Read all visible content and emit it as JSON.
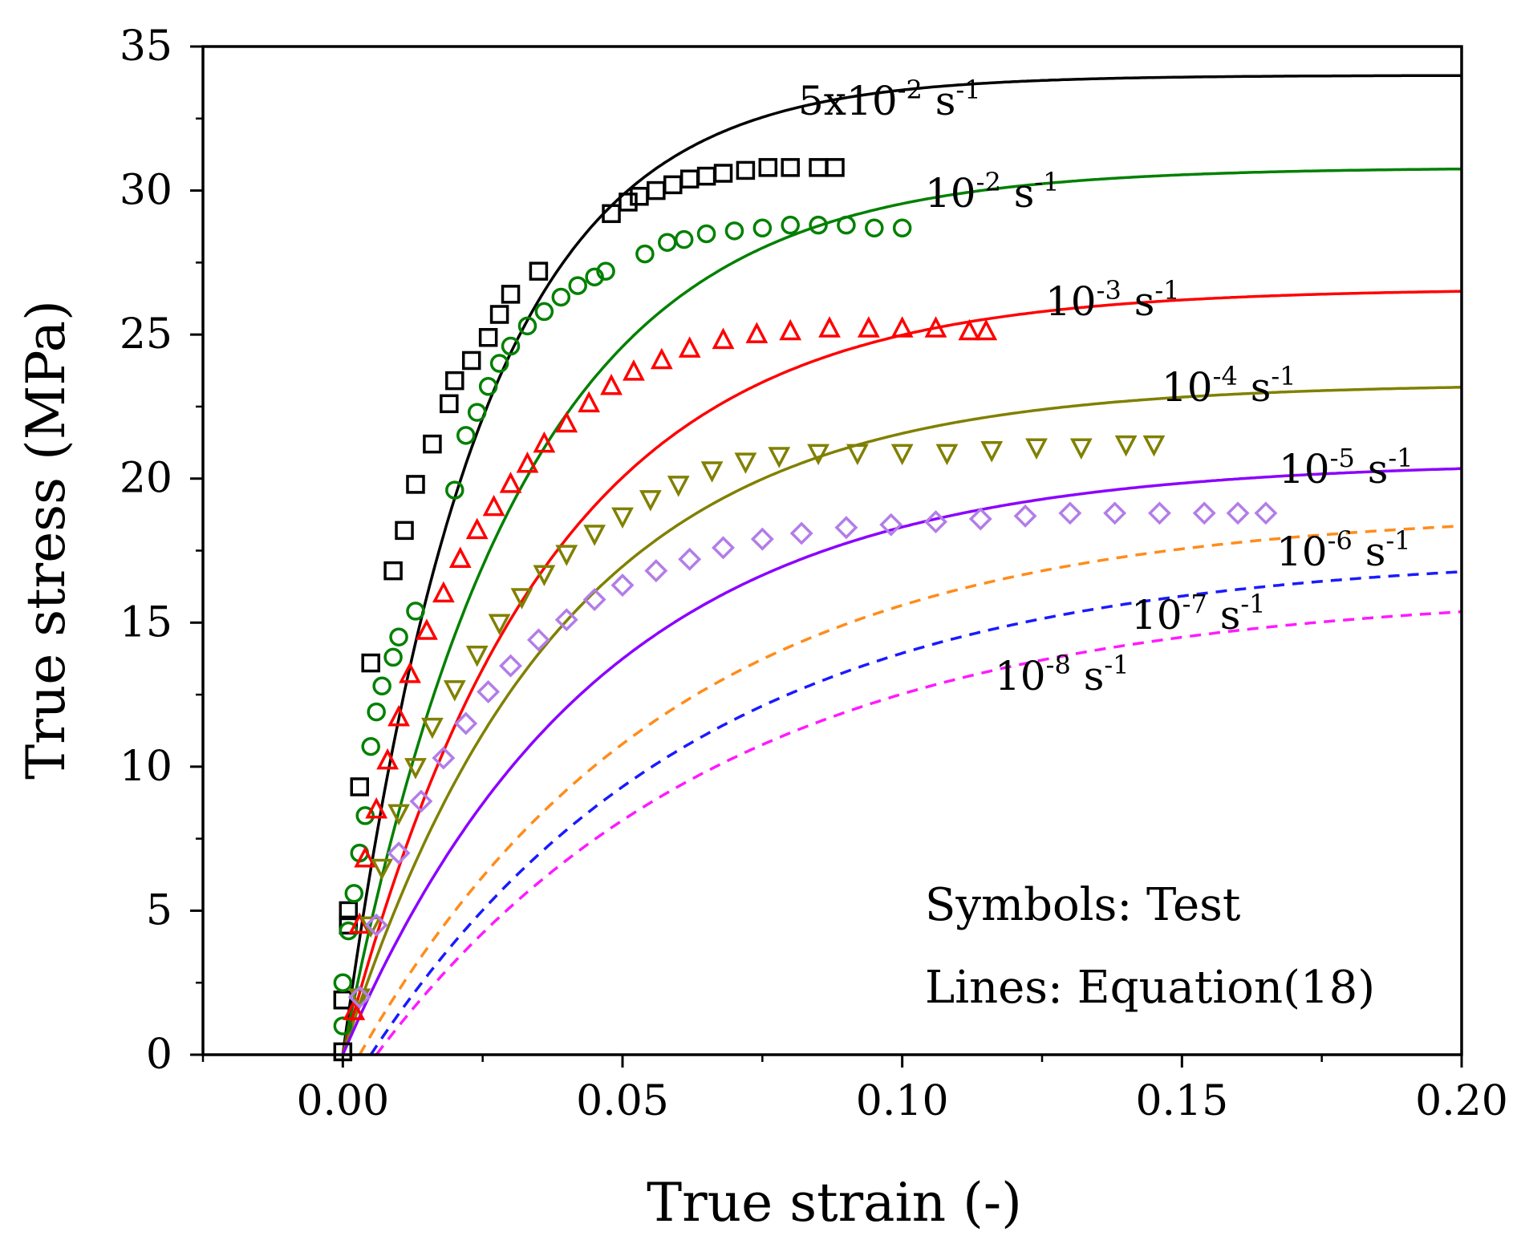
{
  "chart_data": {
    "type": "scatter",
    "title": "",
    "xlabel": "True strain (-)",
    "ylabel": "True stress (MPa)",
    "xlim": [
      -0.025,
      0.2
    ],
    "ylim": [
      0,
      35
    ],
    "x_ticks": [
      "0.00",
      "0.05",
      "0.10",
      "0.15",
      "0.20"
    ],
    "y_ticks": [
      "0",
      "5",
      "10",
      "15",
      "20",
      "25",
      "30",
      "35"
    ],
    "grid": false,
    "notes": {
      "symbols": "Symbols: Test",
      "lines": "Lines: Equation(18)"
    },
    "series": [
      {
        "name": "5x10^-2 s^-1",
        "label_base": "5x10",
        "label_exp": "-2",
        "label_unit": " s",
        "label_unit_exp": "-1",
        "color": "#000000",
        "marker": "square",
        "line_style": "solid",
        "model": {
          "sigma_max": 34.0,
          "k": 42.0,
          "x0": 0.0
        },
        "test": [
          [
            0.0,
            0.1
          ],
          [
            0.0,
            1.9
          ],
          [
            0.001,
            4.5
          ],
          [
            0.001,
            5.0
          ],
          [
            0.003,
            9.3
          ],
          [
            0.005,
            13.6
          ],
          [
            0.009,
            16.8
          ],
          [
            0.011,
            18.2
          ],
          [
            0.013,
            19.8
          ],
          [
            0.016,
            21.2
          ],
          [
            0.019,
            22.6
          ],
          [
            0.02,
            23.4
          ],
          [
            0.023,
            24.1
          ],
          [
            0.026,
            24.9
          ],
          [
            0.028,
            25.7
          ],
          [
            0.03,
            26.4
          ],
          [
            0.035,
            27.2
          ],
          [
            0.048,
            29.2
          ],
          [
            0.051,
            29.6
          ],
          [
            0.053,
            29.8
          ],
          [
            0.056,
            30.0
          ],
          [
            0.059,
            30.2
          ],
          [
            0.062,
            30.4
          ],
          [
            0.065,
            30.5
          ],
          [
            0.068,
            30.6
          ],
          [
            0.072,
            30.7
          ],
          [
            0.076,
            30.8
          ],
          [
            0.08,
            30.8
          ],
          [
            0.085,
            30.8
          ],
          [
            0.088,
            30.8
          ]
        ]
      },
      {
        "name": "10^-2 s^-1",
        "label_base": "10",
        "label_exp": "-2",
        "label_unit": " s",
        "label_unit_exp": "-1",
        "color": "#008000",
        "marker": "circle",
        "line_style": "solid",
        "model": {
          "sigma_max": 30.8,
          "k": 32.0,
          "x0": 0.0
        },
        "test": [
          [
            0.0,
            1.0
          ],
          [
            0.0,
            2.5
          ],
          [
            0.001,
            4.3
          ],
          [
            0.002,
            5.6
          ],
          [
            0.003,
            7.0
          ],
          [
            0.004,
            8.3
          ],
          [
            0.005,
            10.7
          ],
          [
            0.006,
            11.9
          ],
          [
            0.007,
            12.8
          ],
          [
            0.009,
            13.8
          ],
          [
            0.01,
            14.5
          ],
          [
            0.013,
            15.4
          ],
          [
            0.02,
            19.6
          ],
          [
            0.022,
            21.5
          ],
          [
            0.024,
            22.3
          ],
          [
            0.026,
            23.2
          ],
          [
            0.028,
            24.0
          ],
          [
            0.03,
            24.6
          ],
          [
            0.033,
            25.3
          ],
          [
            0.036,
            25.8
          ],
          [
            0.039,
            26.3
          ],
          [
            0.042,
            26.7
          ],
          [
            0.045,
            27.0
          ],
          [
            0.047,
            27.2
          ],
          [
            0.054,
            27.8
          ],
          [
            0.058,
            28.2
          ],
          [
            0.061,
            28.3
          ],
          [
            0.065,
            28.5
          ],
          [
            0.07,
            28.6
          ],
          [
            0.075,
            28.7
          ],
          [
            0.08,
            28.8
          ],
          [
            0.085,
            28.8
          ],
          [
            0.09,
            28.8
          ],
          [
            0.095,
            28.7
          ],
          [
            0.1,
            28.7
          ]
        ]
      },
      {
        "name": "10^-3 s^-1",
        "label_base": "10",
        "label_exp": "-3",
        "label_unit": " s",
        "label_unit_exp": "-1",
        "color": "#ff0000",
        "marker": "triangle-up",
        "line_style": "solid",
        "model": {
          "sigma_max": 26.6,
          "k": 28.0,
          "x0": 0.0
        },
        "test": [
          [
            0.002,
            1.5
          ],
          [
            0.003,
            4.5
          ],
          [
            0.004,
            6.8
          ],
          [
            0.006,
            8.5
          ],
          [
            0.008,
            10.2
          ],
          [
            0.01,
            11.7
          ],
          [
            0.012,
            13.2
          ],
          [
            0.015,
            14.7
          ],
          [
            0.018,
            16.0
          ],
          [
            0.021,
            17.2
          ],
          [
            0.024,
            18.2
          ],
          [
            0.027,
            19.0
          ],
          [
            0.03,
            19.8
          ],
          [
            0.033,
            20.5
          ],
          [
            0.036,
            21.2
          ],
          [
            0.04,
            21.9
          ],
          [
            0.044,
            22.6
          ],
          [
            0.048,
            23.2
          ],
          [
            0.052,
            23.7
          ],
          [
            0.057,
            24.1
          ],
          [
            0.062,
            24.5
          ],
          [
            0.068,
            24.8
          ],
          [
            0.074,
            25.0
          ],
          [
            0.08,
            25.1
          ],
          [
            0.087,
            25.2
          ],
          [
            0.094,
            25.2
          ],
          [
            0.1,
            25.2
          ],
          [
            0.106,
            25.2
          ],
          [
            0.112,
            25.1
          ],
          [
            0.115,
            25.1
          ]
        ]
      },
      {
        "name": "10^-4 s^-1",
        "label_base": "10",
        "label_exp": "-4",
        "label_unit": " s",
        "label_unit_exp": "-1",
        "color": "#808000",
        "marker": "triangle-down",
        "line_style": "solid",
        "model": {
          "sigma_max": 23.3,
          "k": 26.0,
          "x0": 0.0
        },
        "test": [
          [
            0.003,
            2.0
          ],
          [
            0.005,
            4.5
          ],
          [
            0.007,
            6.5
          ],
          [
            0.01,
            8.4
          ],
          [
            0.013,
            10.0
          ],
          [
            0.016,
            11.4
          ],
          [
            0.02,
            12.7
          ],
          [
            0.024,
            13.9
          ],
          [
            0.028,
            15.0
          ],
          [
            0.032,
            15.9
          ],
          [
            0.036,
            16.7
          ],
          [
            0.04,
            17.4
          ],
          [
            0.045,
            18.1
          ],
          [
            0.05,
            18.7
          ],
          [
            0.055,
            19.3
          ],
          [
            0.06,
            19.8
          ],
          [
            0.066,
            20.3
          ],
          [
            0.072,
            20.6
          ],
          [
            0.078,
            20.8
          ],
          [
            0.085,
            20.9
          ],
          [
            0.092,
            20.9
          ],
          [
            0.1,
            20.9
          ],
          [
            0.108,
            20.9
          ],
          [
            0.116,
            21.0
          ],
          [
            0.124,
            21.1
          ],
          [
            0.132,
            21.1
          ],
          [
            0.14,
            21.2
          ],
          [
            0.145,
            21.2
          ]
        ]
      },
      {
        "name": "10^-5 s^-1",
        "label_base": "10",
        "label_exp": "-5",
        "label_unit": " s",
        "label_unit_exp": "-1",
        "color": "#8b00ff",
        "marker": "none",
        "line_style": "solid",
        "model": {
          "sigma_max": 20.6,
          "k": 22.0,
          "x0": 0.0
        }
      },
      {
        "name": "10^-5 s^-1 (test)",
        "color": "#b27de8",
        "marker": "diamond",
        "line_style": "none",
        "test": [
          [
            0.003,
            2.0
          ],
          [
            0.006,
            4.5
          ],
          [
            0.01,
            7.0
          ],
          [
            0.014,
            8.8
          ],
          [
            0.018,
            10.3
          ],
          [
            0.022,
            11.5
          ],
          [
            0.026,
            12.6
          ],
          [
            0.03,
            13.5
          ],
          [
            0.035,
            14.4
          ],
          [
            0.04,
            15.1
          ],
          [
            0.045,
            15.8
          ],
          [
            0.05,
            16.3
          ],
          [
            0.056,
            16.8
          ],
          [
            0.062,
            17.2
          ],
          [
            0.068,
            17.6
          ],
          [
            0.075,
            17.9
          ],
          [
            0.082,
            18.1
          ],
          [
            0.09,
            18.3
          ],
          [
            0.098,
            18.4
          ],
          [
            0.106,
            18.5
          ],
          [
            0.114,
            18.6
          ],
          [
            0.122,
            18.7
          ],
          [
            0.13,
            18.8
          ],
          [
            0.138,
            18.8
          ],
          [
            0.146,
            18.8
          ],
          [
            0.154,
            18.8
          ],
          [
            0.16,
            18.8
          ],
          [
            0.165,
            18.8
          ]
        ]
      },
      {
        "name": "10^-6 s^-1",
        "label_base": "10",
        "label_exp": "-6",
        "label_unit": " s",
        "label_unit_exp": "-1",
        "color": "#ff8c1a",
        "marker": "none",
        "line_style": "dashed",
        "model": {
          "sigma_max": 18.9,
          "k": 18.0,
          "x0": 0.003
        }
      },
      {
        "name": "10^-7 s^-1",
        "label_base": "10",
        "label_exp": "-7",
        "label_unit": " s",
        "label_unit_exp": "-1",
        "color": "#1a1aff",
        "marker": "none",
        "line_style": "dashed",
        "model": {
          "sigma_max": 17.4,
          "k": 17.0,
          "x0": 0.005
        }
      },
      {
        "name": "10^-8 s^-1",
        "label_base": "10",
        "label_exp": "-8",
        "label_unit": " s",
        "label_unit_exp": "-1",
        "color": "#ff1aff",
        "marker": "none",
        "line_style": "dashed",
        "model": {
          "sigma_max": 16.1,
          "k": 16.0,
          "x0": 0.006
        }
      }
    ]
  }
}
